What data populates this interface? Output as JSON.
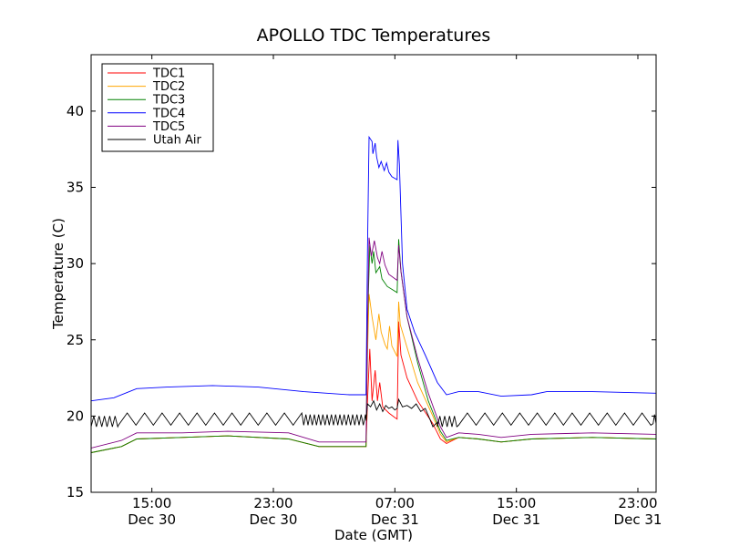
{
  "chart_data": {
    "type": "line",
    "title": "APOLLO TDC Temperatures",
    "xlabel": "Date (GMT)",
    "ylabel": "Temperature (C)",
    "xlim": [
      11,
      48.2
    ],
    "ylim": [
      15,
      43.7
    ],
    "yticks": [
      15,
      20,
      25,
      30,
      35,
      40
    ],
    "xticks": [
      {
        "x": 15,
        "time": "15:00",
        "date": "Dec 30"
      },
      {
        "x": 23,
        "time": "23:00",
        "date": "Dec 30"
      },
      {
        "x": 31,
        "time": "07:00",
        "date": "Dec 31"
      },
      {
        "x": 39,
        "time": "15:00",
        "date": "Dec 31"
      },
      {
        "x": 47,
        "time": "23:00",
        "date": "Dec 31"
      }
    ],
    "legend": {
      "position": "upper-left"
    },
    "x_unit_note": "hours since Dec 30 00:00 GMT",
    "series": [
      {
        "name": "TDC1",
        "color": "#ff0000",
        "points": [
          [
            11,
            17.6
          ],
          [
            13,
            18.0
          ],
          [
            14,
            18.5
          ],
          [
            17,
            18.6
          ],
          [
            20,
            18.7
          ],
          [
            24,
            18.5
          ],
          [
            26,
            18.0
          ],
          [
            29.1,
            18.0
          ],
          [
            29.2,
            21.0
          ],
          [
            29.35,
            24.4
          ],
          [
            29.5,
            21.0
          ],
          [
            29.7,
            23.0
          ],
          [
            29.85,
            21.0
          ],
          [
            30.0,
            22.2
          ],
          [
            30.2,
            20.6
          ],
          [
            30.6,
            20.2
          ],
          [
            31.0,
            19.9
          ],
          [
            31.15,
            19.8
          ],
          [
            31.25,
            26.2
          ],
          [
            31.4,
            24.0
          ],
          [
            31.8,
            22.5
          ],
          [
            32.5,
            21.0
          ],
          [
            33.5,
            19.5
          ],
          [
            34.0,
            18.5
          ],
          [
            34.4,
            18.2
          ],
          [
            35.2,
            18.6
          ],
          [
            36.5,
            18.5
          ],
          [
            38,
            18.3
          ],
          [
            40,
            18.5
          ],
          [
            44,
            18.6
          ],
          [
            48.2,
            18.5
          ]
        ]
      },
      {
        "name": "TDC2",
        "color": "#ffa500",
        "points": [
          [
            11,
            17.6
          ],
          [
            13,
            18.0
          ],
          [
            14,
            18.5
          ],
          [
            17,
            18.6
          ],
          [
            20,
            18.7
          ],
          [
            24,
            18.5
          ],
          [
            26,
            18.0
          ],
          [
            29.1,
            18.0
          ],
          [
            29.2,
            24.0
          ],
          [
            29.3,
            28.0
          ],
          [
            29.5,
            26.5
          ],
          [
            29.75,
            25.0
          ],
          [
            29.95,
            26.7
          ],
          [
            30.1,
            25.5
          ],
          [
            30.35,
            24.7
          ],
          [
            30.5,
            24.4
          ],
          [
            30.65,
            25.9
          ],
          [
            30.8,
            24.6
          ],
          [
            31.15,
            23.9
          ],
          [
            31.25,
            27.5
          ],
          [
            31.35,
            26.0
          ],
          [
            31.8,
            24.5
          ],
          [
            32.5,
            22.2
          ],
          [
            33.5,
            20.0
          ],
          [
            34.0,
            18.8
          ],
          [
            34.4,
            18.3
          ],
          [
            35.2,
            18.6
          ],
          [
            36.5,
            18.5
          ],
          [
            38,
            18.3
          ],
          [
            40,
            18.5
          ],
          [
            44,
            18.6
          ],
          [
            48.2,
            18.5
          ]
        ]
      },
      {
        "name": "TDC3",
        "color": "#008000",
        "points": [
          [
            11,
            17.6
          ],
          [
            13,
            18.0
          ],
          [
            14,
            18.5
          ],
          [
            17,
            18.6
          ],
          [
            20,
            18.7
          ],
          [
            24,
            18.5
          ],
          [
            26,
            18.0
          ],
          [
            29.1,
            18.0
          ],
          [
            29.2,
            26.0
          ],
          [
            29.35,
            31.2
          ],
          [
            29.5,
            30.0
          ],
          [
            29.6,
            30.8
          ],
          [
            29.75,
            29.4
          ],
          [
            30.0,
            29.8
          ],
          [
            30.15,
            29.0
          ],
          [
            30.5,
            28.5
          ],
          [
            31.15,
            28.1
          ],
          [
            31.25,
            31.6
          ],
          [
            31.4,
            29.5
          ],
          [
            31.8,
            26.5
          ],
          [
            32.5,
            23.5
          ],
          [
            33.2,
            21.0
          ],
          [
            34.0,
            19.0
          ],
          [
            34.4,
            18.4
          ],
          [
            35.2,
            18.6
          ],
          [
            36.5,
            18.5
          ],
          [
            38,
            18.3
          ],
          [
            40,
            18.5
          ],
          [
            44,
            18.6
          ],
          [
            48.2,
            18.5
          ]
        ]
      },
      {
        "name": "TDC4",
        "color": "#0000ff",
        "points": [
          [
            11,
            21.0
          ],
          [
            12.5,
            21.2
          ],
          [
            14,
            21.8
          ],
          [
            16,
            21.9
          ],
          [
            19,
            22.0
          ],
          [
            22,
            21.9
          ],
          [
            25,
            21.6
          ],
          [
            28,
            21.4
          ],
          [
            29.1,
            21.4
          ],
          [
            29.2,
            31.0
          ],
          [
            29.3,
            38.3
          ],
          [
            29.5,
            38.0
          ],
          [
            29.55,
            37.2
          ],
          [
            29.7,
            37.9
          ],
          [
            29.8,
            37.0
          ],
          [
            29.95,
            36.3
          ],
          [
            30.1,
            36.7
          ],
          [
            30.3,
            36.1
          ],
          [
            30.45,
            36.6
          ],
          [
            30.6,
            36.0
          ],
          [
            30.8,
            35.7
          ],
          [
            31.15,
            35.5
          ],
          [
            31.2,
            38.1
          ],
          [
            31.3,
            36.5
          ],
          [
            31.5,
            30.0
          ],
          [
            31.8,
            27.0
          ],
          [
            32.3,
            25.5
          ],
          [
            33.0,
            24.0
          ],
          [
            33.8,
            22.2
          ],
          [
            34.4,
            21.4
          ],
          [
            35.2,
            21.6
          ],
          [
            36.5,
            21.6
          ],
          [
            38,
            21.3
          ],
          [
            40,
            21.4
          ],
          [
            41,
            21.6
          ],
          [
            44,
            21.6
          ],
          [
            48.2,
            21.5
          ]
        ]
      },
      {
        "name": "TDC5",
        "color": "#800080",
        "points": [
          [
            11,
            17.9
          ],
          [
            13,
            18.4
          ],
          [
            14,
            18.9
          ],
          [
            17,
            18.9
          ],
          [
            20,
            19.0
          ],
          [
            24,
            18.9
          ],
          [
            26,
            18.3
          ],
          [
            29.1,
            18.3
          ],
          [
            29.2,
            26.0
          ],
          [
            29.3,
            31.7
          ],
          [
            29.45,
            30.5
          ],
          [
            29.65,
            31.5
          ],
          [
            29.85,
            30.4
          ],
          [
            30.0,
            30.0
          ],
          [
            30.15,
            30.8
          ],
          [
            30.35,
            29.9
          ],
          [
            30.6,
            29.3
          ],
          [
            31.15,
            28.9
          ],
          [
            31.25,
            31.2
          ],
          [
            31.4,
            29.5
          ],
          [
            31.8,
            26.5
          ],
          [
            32.5,
            23.8
          ],
          [
            33.2,
            21.5
          ],
          [
            34.0,
            19.3
          ],
          [
            34.4,
            18.6
          ],
          [
            35.2,
            18.9
          ],
          [
            36.5,
            18.8
          ],
          [
            38,
            18.6
          ],
          [
            40,
            18.8
          ],
          [
            44,
            18.9
          ],
          [
            48.2,
            18.8
          ]
        ]
      },
      {
        "name": "Utah Air",
        "color": "#000000",
        "oscillating": true,
        "segments": [
          {
            "x0": 11.0,
            "x1": 12.8,
            "period": 0.35,
            "lo": 19.3,
            "hi": 20.0
          },
          {
            "x0": 12.8,
            "x1": 25.0,
            "period": 1.15,
            "lo": 19.4,
            "hi": 20.2
          },
          {
            "x0": 25.0,
            "x1": 29.1,
            "period": 0.28,
            "lo": 19.4,
            "hi": 20.1
          },
          {
            "x0": 33.8,
            "x1": 35.2,
            "period": 0.32,
            "lo": 19.3,
            "hi": 20.0
          },
          {
            "x0": 35.2,
            "x1": 48.0,
            "period": 1.15,
            "lo": 19.4,
            "hi": 20.2
          },
          {
            "x0": 48.0,
            "x1": 48.2,
            "period": 0.2,
            "lo": 19.5,
            "hi": 20.1
          }
        ],
        "points": [
          [
            29.1,
            19.7
          ],
          [
            29.2,
            20.8
          ],
          [
            29.4,
            20.6
          ],
          [
            29.6,
            21.0
          ],
          [
            29.8,
            20.4
          ],
          [
            30.0,
            20.8
          ],
          [
            30.2,
            20.3
          ],
          [
            30.4,
            20.7
          ],
          [
            30.6,
            20.5
          ],
          [
            30.8,
            20.6
          ],
          [
            31.0,
            20.4
          ],
          [
            31.15,
            20.5
          ],
          [
            31.25,
            21.1
          ],
          [
            31.5,
            20.6
          ],
          [
            31.8,
            20.7
          ],
          [
            32.1,
            20.5
          ],
          [
            32.4,
            20.8
          ],
          [
            32.7,
            20.3
          ],
          [
            33.0,
            20.5
          ],
          [
            33.3,
            19.8
          ],
          [
            33.5,
            19.3
          ],
          [
            33.8,
            19.6
          ]
        ]
      }
    ]
  }
}
